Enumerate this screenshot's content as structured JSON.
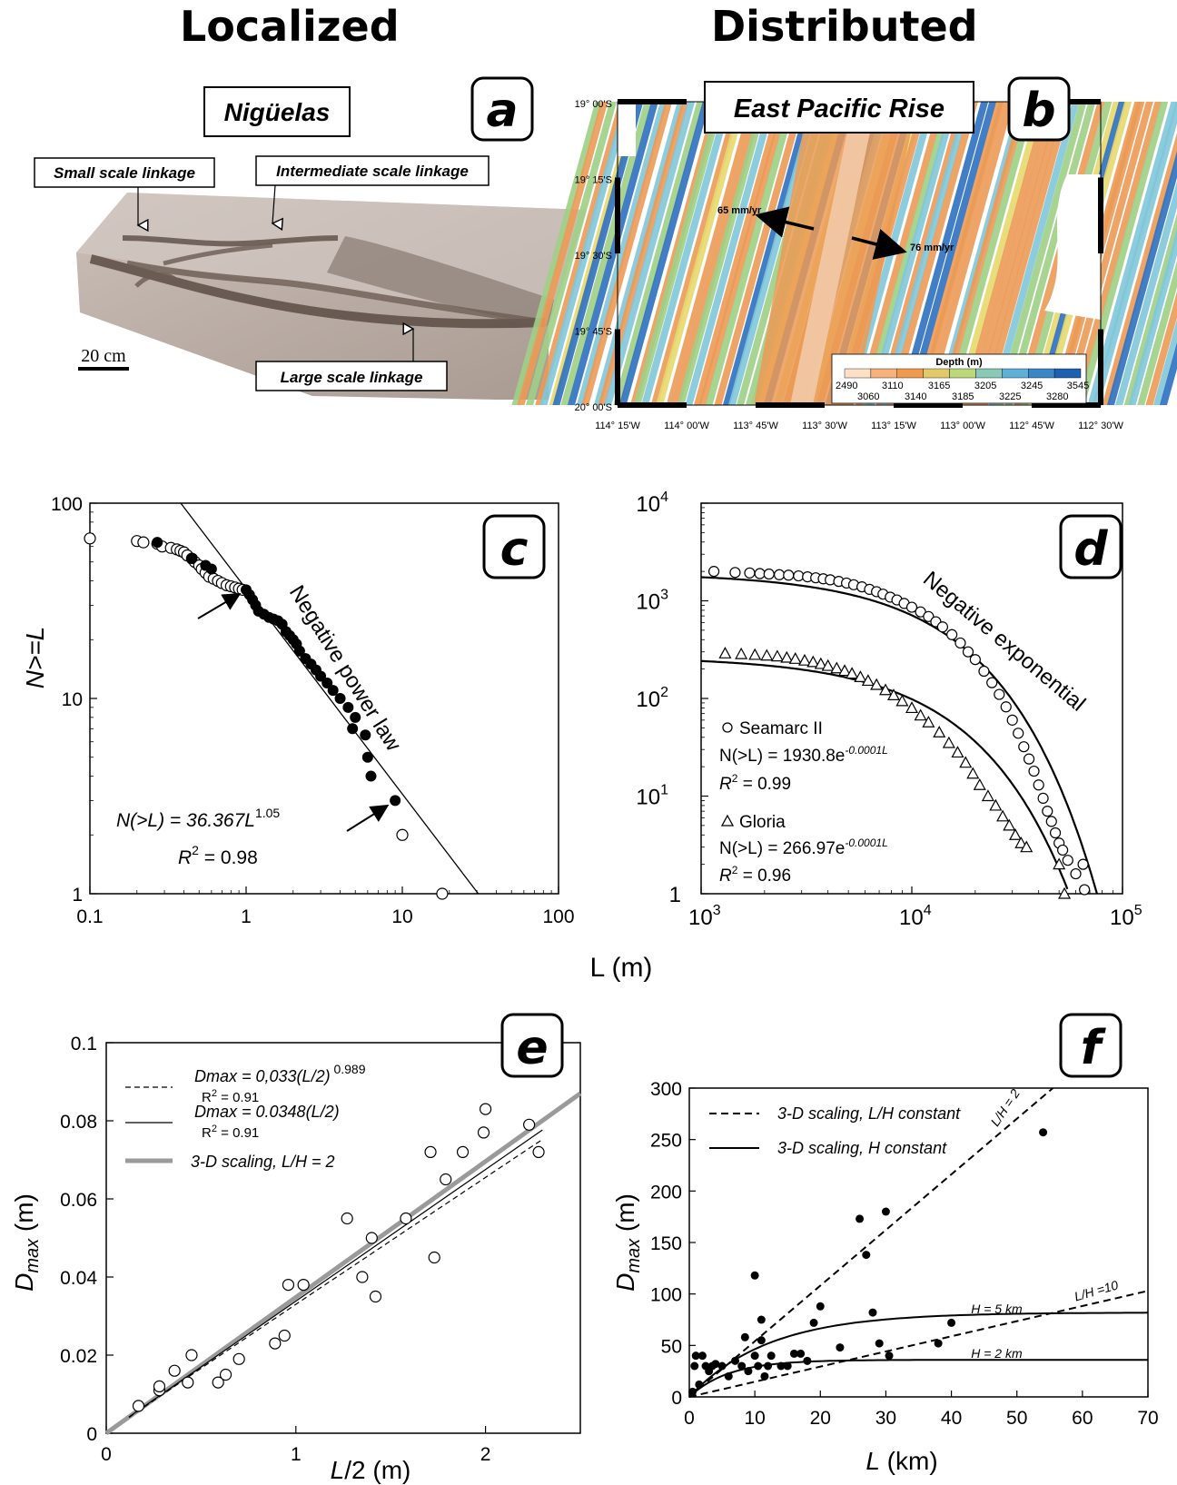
{
  "titles": {
    "left": "Localized",
    "right": "Distributed"
  },
  "panel_a": {
    "letter": "a",
    "site": "Nigüelas",
    "labels": {
      "small": "Small scale linkage",
      "intermediate": "Intermediate scale linkage",
      "large": "Large scale linkage"
    },
    "scale_bar": "20 cm"
  },
  "panel_b": {
    "letter": "b",
    "site": "East Pacific Rise",
    "rate_left": "65 mm/yr",
    "rate_right": "76 mm/yr",
    "lat_ticks": [
      "19° 00'S",
      "19° 15'S",
      "19° 30'S",
      "19° 45'S",
      "20° 00'S"
    ],
    "lon_ticks": [
      "114° 15'W",
      "114° 00'W",
      "113° 45'W",
      "113° 30'W",
      "113° 15'W",
      "113° 00'W",
      "112° 45'W",
      "112° 30'W"
    ],
    "colorbar_title": "Depth (m)",
    "colorbar_top": [
      "2490",
      "3110",
      "3165",
      "3205",
      "3245",
      "3545"
    ],
    "colorbar_bottom": [
      "3060",
      "3140",
      "3185",
      "3225",
      "3280"
    ],
    "colorbar_colors": [
      "#fde0c6",
      "#f6b27a",
      "#ef9b4d",
      "#e3c86a",
      "#bcd87a",
      "#88c9b8",
      "#5fb0d8",
      "#3a86c6",
      "#1f5fb0"
    ],
    "map_colors": {
      "orange": "#eb9a55",
      "yellow": "#e6d86d",
      "green": "#9fcf86",
      "cyan": "#7fc6d9",
      "blue": "#2e70bf",
      "ridge": "#f1c7a3"
    }
  },
  "chart_data": [
    {
      "panel": "c",
      "type": "scatter",
      "x_scale": "log",
      "y_scale": "log",
      "xlim": [
        0.1,
        100
      ],
      "ylim": [
        1,
        100
      ],
      "x_ticks": [
        "0.1",
        "1",
        "10",
        "100"
      ],
      "y_ticks": [
        "1",
        "10",
        "100"
      ],
      "ylabel": "N>=L",
      "xlabel": "L (m)",
      "annotation": "Negative power law",
      "equation": "N(>L) = 36.367L",
      "equation_exp": "1.05",
      "r2_label": "R",
      "r2_exp": "2",
      "r2_value": " = 0.98",
      "fit": {
        "a": 36.367,
        "b": -1.05
      },
      "open_points": [
        [
          0.1,
          66
        ],
        [
          0.2,
          64
        ],
        [
          0.22,
          63
        ],
        [
          0.27,
          62
        ],
        [
          0.29,
          60
        ],
        [
          0.33,
          59
        ],
        [
          0.36,
          58
        ],
        [
          0.38,
          57
        ],
        [
          0.4,
          56
        ],
        [
          0.42,
          54
        ],
        [
          0.45,
          52
        ],
        [
          0.47,
          50
        ],
        [
          0.5,
          48
        ],
        [
          0.52,
          46
        ],
        [
          0.55,
          44
        ],
        [
          0.58,
          42
        ],
        [
          0.62,
          41
        ],
        [
          0.66,
          40
        ],
        [
          0.7,
          39
        ],
        [
          0.75,
          38
        ],
        [
          0.8,
          37.5
        ],
        [
          0.85,
          37
        ],
        [
          0.9,
          36.5
        ],
        [
          0.95,
          36
        ],
        [
          10,
          2
        ],
        [
          18,
          1
        ]
      ],
      "filled_points": [
        [
          0.27,
          63
        ],
        [
          0.45,
          52
        ],
        [
          0.55,
          48
        ],
        [
          0.6,
          46
        ],
        [
          1.0,
          36
        ],
        [
          1.05,
          34
        ],
        [
          1.1,
          32
        ],
        [
          1.15,
          30
        ],
        [
          1.2,
          28
        ],
        [
          1.3,
          27
        ],
        [
          1.4,
          26
        ],
        [
          1.5,
          25.5
        ],
        [
          1.6,
          25
        ],
        [
          1.7,
          24
        ],
        [
          1.8,
          22
        ],
        [
          1.9,
          21
        ],
        [
          2.0,
          20
        ],
        [
          2.1,
          19
        ],
        [
          2.2,
          17.5
        ],
        [
          2.4,
          16
        ],
        [
          2.6,
          15
        ],
        [
          2.8,
          14
        ],
        [
          3.0,
          13
        ],
        [
          3.3,
          12
        ],
        [
          3.6,
          11
        ],
        [
          4.0,
          10
        ],
        [
          4.5,
          9
        ],
        [
          5.0,
          8
        ],
        [
          4.8,
          7
        ],
        [
          5.8,
          6.5
        ],
        [
          6.0,
          5
        ],
        [
          6.3,
          4
        ],
        [
          9.0,
          3
        ]
      ]
    },
    {
      "panel": "d",
      "type": "scatter",
      "x_scale": "log",
      "y_scale": "log",
      "xlim": [
        1000,
        100000
      ],
      "ylim": [
        1,
        10000
      ],
      "x_ticks_base": [
        "10",
        "10",
        "10"
      ],
      "x_ticks_exp": [
        "3",
        "4",
        "5"
      ],
      "y_ticks_base": [
        "1",
        "10",
        "10",
        "10",
        "10"
      ],
      "y_ticks_exp": [
        "",
        "1",
        "2",
        "3",
        "4"
      ],
      "annotation": "Negative exponential",
      "series": [
        {
          "name": "Seamarc II",
          "marker": "circle",
          "a": 1930.8,
          "k": 0.0001,
          "equation": "N(>L) = 1930.8e",
          "equation_exp": "-0.0001L",
          "r2_label": "R",
          "r2_exp": "2",
          "r2_value": " = 0.99",
          "points": [
            [
              1150,
              2000
            ],
            [
              1450,
              1950
            ],
            [
              1700,
              1930
            ],
            [
              1900,
              1900
            ],
            [
              2100,
              1880
            ],
            [
              2350,
              1850
            ],
            [
              2600,
              1830
            ],
            [
              2900,
              1800
            ],
            [
              3200,
              1760
            ],
            [
              3500,
              1720
            ],
            [
              3800,
              1680
            ],
            [
              4100,
              1640
            ],
            [
              4500,
              1580
            ],
            [
              4900,
              1520
            ],
            [
              5300,
              1460
            ],
            [
              5800,
              1390
            ],
            [
              6300,
              1310
            ],
            [
              6800,
              1240
            ],
            [
              7300,
              1170
            ],
            [
              7900,
              1090
            ],
            [
              8500,
              1020
            ],
            [
              9200,
              940
            ],
            [
              10000,
              860
            ],
            [
              11000,
              770
            ],
            [
              12000,
              690
            ],
            [
              13000,
              610
            ],
            [
              14000,
              540
            ],
            [
              15500,
              450
            ],
            [
              17000,
              370
            ],
            [
              18500,
              300
            ],
            [
              20000,
              250
            ],
            [
              22000,
              190
            ],
            [
              24000,
              145
            ],
            [
              26000,
              110
            ],
            [
              28000,
              82
            ],
            [
              30000,
              60
            ],
            [
              32000,
              44
            ],
            [
              34000,
              32
            ],
            [
              36000,
              24
            ],
            [
              38000,
              18
            ],
            [
              40000,
              13
            ],
            [
              42000,
              9.5
            ],
            [
              44000,
              7
            ],
            [
              46000,
              5.5
            ],
            [
              48000,
              4.2
            ],
            [
              50000,
              3.3
            ],
            [
              52000,
              2.8
            ],
            [
              55000,
              2.2
            ],
            [
              60000,
              1.6
            ],
            [
              65000,
              2.0
            ],
            [
              66000,
              1.1
            ]
          ]
        },
        {
          "name": "Gloria",
          "marker": "triangle",
          "a": 266.97,
          "k": 0.0001,
          "equation": "N(>L) = 266.97e",
          "equation_exp": "-0.0001L",
          "r2_label": "R",
          "r2_exp": "2",
          "r2_value": " = 0.96",
          "points": [
            [
              1300,
              290
            ],
            [
              1550,
              285
            ],
            [
              1800,
              280
            ],
            [
              2050,
              275
            ],
            [
              2300,
              270
            ],
            [
              2550,
              262
            ],
            [
              2800,
              255
            ],
            [
              3100,
              245
            ],
            [
              3400,
              236
            ],
            [
              3700,
              226
            ],
            [
              4000,
              216
            ],
            [
              4400,
              204
            ],
            [
              4800,
              192
            ],
            [
              5200,
              180
            ],
            [
              5700,
              166
            ],
            [
              6200,
              152
            ],
            [
              6800,
              138
            ],
            [
              7500,
              122
            ],
            [
              8200,
              108
            ],
            [
              9000,
              94
            ],
            [
              10000,
              80
            ],
            [
              11000,
              67
            ],
            [
              12000,
              57
            ],
            [
              13500,
              45
            ],
            [
              15000,
              35
            ],
            [
              16500,
              28
            ],
            [
              18000,
              22
            ],
            [
              19500,
              17
            ],
            [
              21000,
              13
            ],
            [
              23000,
              10
            ],
            [
              25000,
              8
            ],
            [
              27000,
              6.2
            ],
            [
              29000,
              5
            ],
            [
              31000,
              4
            ],
            [
              33000,
              3.3
            ],
            [
              35000,
              3
            ],
            [
              50000,
              2
            ],
            [
              53000,
              1
            ]
          ]
        }
      ]
    },
    {
      "panel": "e",
      "type": "scatter",
      "xlim": [
        0,
        2.5
      ],
      "ylim": [
        0,
        0.1
      ],
      "x_ticks": [
        "0",
        "1",
        "2"
      ],
      "y_ticks": [
        "0",
        "0.02",
        "0.04",
        "0.06",
        "0.08",
        "0.1"
      ],
      "xlabel_ital": "L",
      "xlabel_rest": "/2 (m)",
      "ylabel_main": "D",
      "ylabel_sub": "max",
      "ylabel_rest": " (m)",
      "legend": [
        {
          "style": "dashed",
          "eq": "Dmax = 0,033(L/2)",
          "exp": "0.989",
          "r2": "R",
          "r2_exp": "2",
          "r2_val": " = 0.91"
        },
        {
          "style": "solid",
          "eq": "Dmax = 0.0348(L/2)",
          "exp": "",
          "r2": "R",
          "r2_exp": "2",
          "r2_val": " = 0.91"
        },
        {
          "style": "gray",
          "eq": "3-D scaling, L/H = 2",
          "exp": "",
          "r2": "",
          "r2_exp": "",
          "r2_val": ""
        }
      ],
      "fits": {
        "dashed": {
          "a": 0.033,
          "b": 0.989
        },
        "solid": {
          "a": 0.0348,
          "b": 1
        },
        "gray": {
          "a": 0.0348,
          "b": 1
        }
      },
      "points": [
        [
          0.17,
          0.007
        ],
        [
          0.28,
          0.011
        ],
        [
          0.28,
          0.012
        ],
        [
          0.36,
          0.016
        ],
        [
          0.43,
          0.013
        ],
        [
          0.45,
          0.02
        ],
        [
          0.59,
          0.013
        ],
        [
          0.63,
          0.015
        ],
        [
          0.7,
          0.019
        ],
        [
          0.89,
          0.023
        ],
        [
          0.94,
          0.025
        ],
        [
          0.96,
          0.038
        ],
        [
          1.04,
          0.038
        ],
        [
          1.27,
          0.055
        ],
        [
          1.35,
          0.04
        ],
        [
          1.4,
          0.05
        ],
        [
          1.42,
          0.035
        ],
        [
          1.58,
          0.055
        ],
        [
          1.71,
          0.072
        ],
        [
          1.73,
          0.045
        ],
        [
          1.79,
          0.065
        ],
        [
          1.88,
          0.072
        ],
        [
          1.99,
          0.077
        ],
        [
          2.0,
          0.083
        ],
        [
          2.23,
          0.079
        ],
        [
          2.28,
          0.072
        ]
      ]
    },
    {
      "panel": "f",
      "type": "scatter",
      "xlim": [
        0,
        70
      ],
      "ylim": [
        0,
        300
      ],
      "x_ticks": [
        "0",
        "10",
        "20",
        "30",
        "40",
        "50",
        "60",
        "70"
      ],
      "y_ticks": [
        "0",
        "50",
        "100",
        "150",
        "200",
        "250",
        "300"
      ],
      "xlabel_ital": "L",
      "xlabel_rest": " (km)",
      "ylabel_main": "D",
      "ylabel_sub": "max",
      "ylabel_rest": " (m)",
      "legend": [
        {
          "style": "dashed",
          "label": "3-D scaling, L/H constant"
        },
        {
          "style": "solid",
          "label": "3-D scaling, H constant"
        }
      ],
      "curve_labels": {
        "lh2": "L/H = 2",
        "lh10": "L/H =10",
        "h5": "H = 5 km",
        "h2": "H = 2 km"
      },
      "points": [
        [
          0.5,
          5
        ],
        [
          0.8,
          30
        ],
        [
          1,
          40
        ],
        [
          1.5,
          12
        ],
        [
          2,
          40
        ],
        [
          2.5,
          30
        ],
        [
          3,
          25
        ],
        [
          3.5,
          30
        ],
        [
          4,
          32
        ],
        [
          5,
          30
        ],
        [
          6,
          20
        ],
        [
          7,
          35
        ],
        [
          8,
          30
        ],
        [
          8.5,
          58
        ],
        [
          9,
          25
        ],
        [
          10,
          40
        ],
        [
          10,
          118
        ],
        [
          10.5,
          30
        ],
        [
          11,
          55
        ],
        [
          11,
          75
        ],
        [
          11.5,
          20
        ],
        [
          12,
          30
        ],
        [
          12.5,
          40
        ],
        [
          14,
          30
        ],
        [
          15,
          30
        ],
        [
          16,
          42
        ],
        [
          17,
          42
        ],
        [
          18,
          35
        ],
        [
          19,
          72
        ],
        [
          20,
          88
        ],
        [
          23,
          48
        ],
        [
          26,
          173
        ],
        [
          27,
          138
        ],
        [
          28,
          82
        ],
        [
          29,
          52
        ],
        [
          30,
          180
        ],
        [
          30.5,
          40
        ],
        [
          38,
          52
        ],
        [
          40,
          72
        ],
        [
          54,
          257
        ]
      ]
    }
  ]
}
